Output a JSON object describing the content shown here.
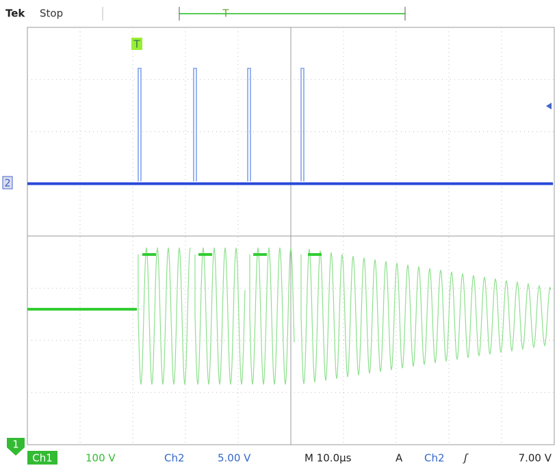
{
  "header": {
    "brand": "Tek",
    "status": "Stop",
    "record_marker": "T"
  },
  "markers": {
    "trigger": "T",
    "ch2": "2",
    "ch1": "1"
  },
  "status_bar": {
    "ch1_label": "Ch1",
    "ch1_scale": "100 V",
    "ch2_label": "Ch2",
    "ch2_scale": "5.00 V",
    "timebase": "M 10.0µs",
    "trigger_mode": "A",
    "trigger_source": "Ch2",
    "trigger_level": "7.00 V"
  }
}
